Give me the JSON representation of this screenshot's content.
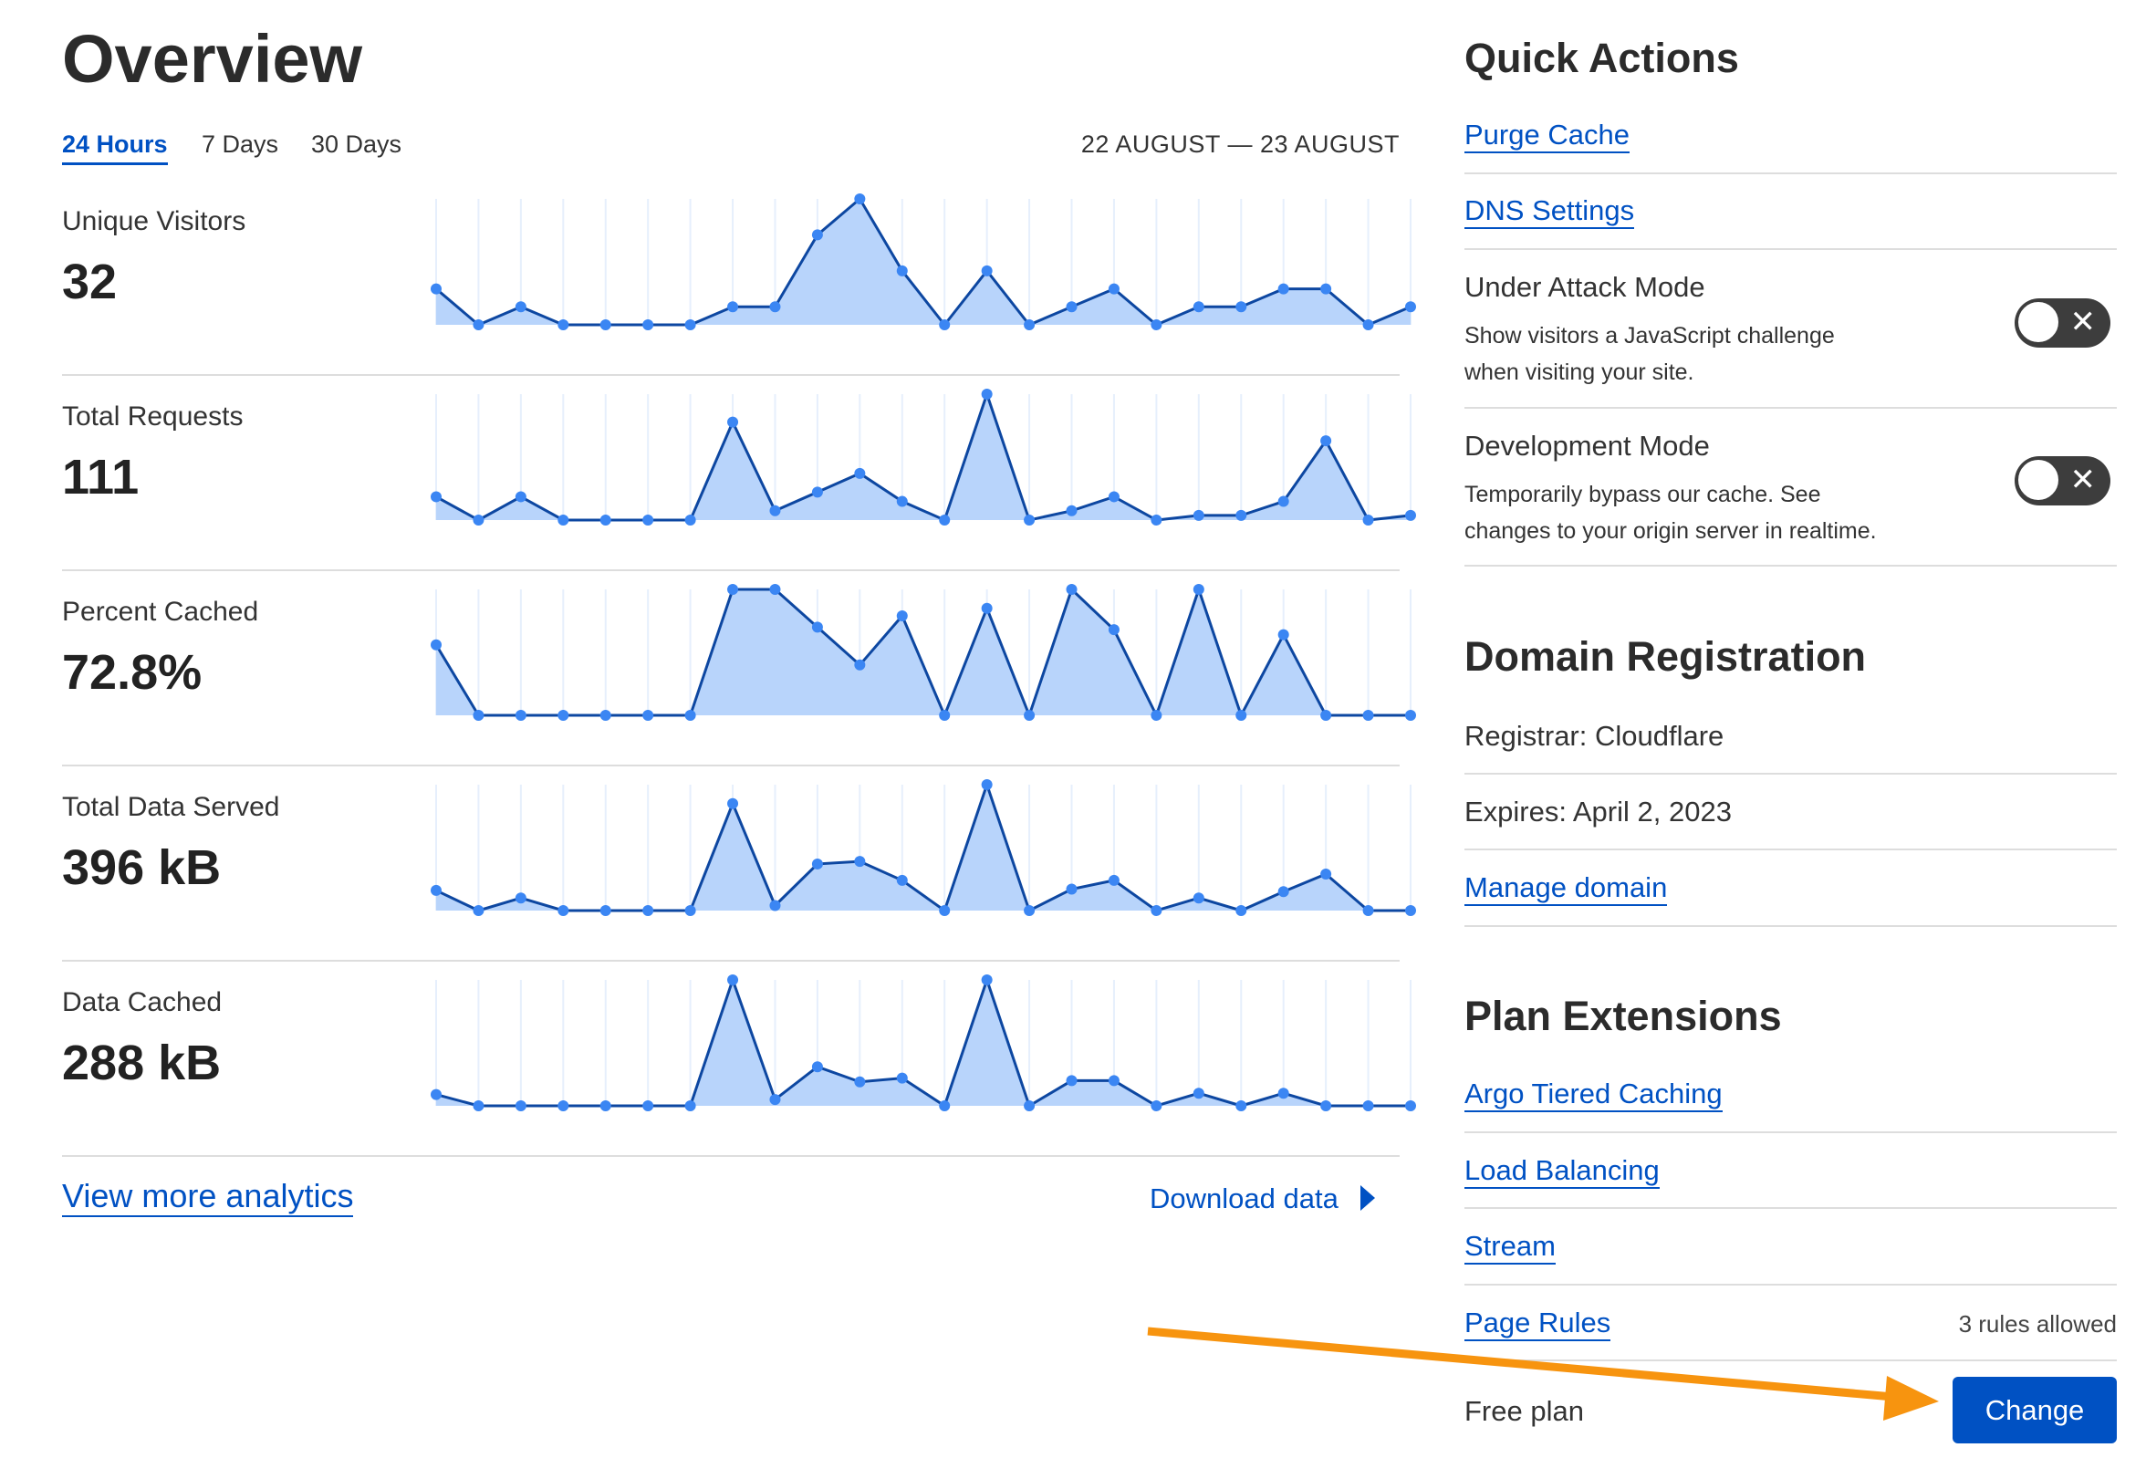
{
  "overview": {
    "title": "Overview",
    "tabs": [
      {
        "label": "24 Hours",
        "active": true
      },
      {
        "label": "7 Days",
        "active": false
      },
      {
        "label": "30 Days",
        "active": false
      }
    ],
    "date_range": "22 AUGUST — 23 AUGUST",
    "metrics": [
      {
        "label": "Unique Visitors",
        "value": "32"
      },
      {
        "label": "Total Requests",
        "value": "111"
      },
      {
        "label": "Percent Cached",
        "value": "72.8%"
      },
      {
        "label": "Total Data Served",
        "value": "396 kB"
      },
      {
        "label": "Data Cached",
        "value": "288 kB"
      }
    ],
    "view_more": "View more analytics",
    "download": "Download data"
  },
  "chart_data": [
    {
      "type": "area",
      "name": "Unique Visitors",
      "values": [
        2,
        0,
        1,
        0,
        0,
        0,
        0,
        1,
        1,
        5,
        7,
        3,
        0,
        3,
        0,
        1,
        2,
        0,
        1,
        1,
        2,
        2,
        0,
        1
      ]
    },
    {
      "type": "area",
      "name": "Total Requests",
      "values": [
        5,
        0,
        5,
        0,
        0,
        0,
        0,
        21,
        2,
        6,
        10,
        4,
        0,
        27,
        0,
        2,
        5,
        0,
        1,
        1,
        4,
        17,
        0,
        1
      ]
    },
    {
      "type": "area",
      "name": "Percent Cached",
      "values": [
        56,
        0,
        0,
        0,
        0,
        0,
        0,
        100,
        100,
        70,
        40,
        79,
        0,
        85,
        0,
        100,
        68,
        0,
        100,
        0,
        64,
        0,
        0,
        0
      ]
    },
    {
      "type": "area",
      "name": "Total Data Served",
      "values": [
        16,
        0,
        10,
        0,
        0,
        0,
        0,
        85,
        4,
        37,
        39,
        24,
        0,
        100,
        0,
        17,
        24,
        0,
        10,
        0,
        15,
        29,
        0,
        0
      ]
    },
    {
      "type": "area",
      "name": "Data Cached",
      "values": [
        9,
        0,
        0,
        0,
        0,
        0,
        0,
        100,
        5,
        31,
        19,
        22,
        0,
        100,
        0,
        20,
        20,
        0,
        10,
        0,
        10,
        0,
        0,
        0
      ]
    }
  ],
  "colors": {
    "accent": "#0051c3",
    "line": "#0d47a1",
    "fill": "#b8d4fb",
    "point": "#3b86f3",
    "arrow": "#f7940f",
    "toggle": "#3d3d3d"
  },
  "quick_actions": {
    "title": "Quick Actions",
    "links": [
      "Purge Cache",
      "DNS Settings"
    ],
    "under_attack": {
      "title": "Under Attack Mode",
      "desc1": "Show visitors a JavaScript challenge",
      "desc2": "when visiting your site.",
      "enabled": false
    },
    "dev_mode": {
      "title": "Development Mode",
      "desc1": "Temporarily bypass our cache. See",
      "desc2": "changes to your origin server in realtime.",
      "enabled": false
    },
    "toggle_off_icon": "close-icon"
  },
  "domain": {
    "title": "Domain Registration",
    "registrar": "Registrar: Cloudflare",
    "expires": "Expires: April 2, 2023",
    "manage": "Manage domain"
  },
  "plan": {
    "title": "Plan Extensions",
    "links": [
      "Argo Tiered Caching",
      "Load Balancing",
      "Stream",
      "Page Rules"
    ],
    "page_rules_note": "3 rules allowed",
    "plan_name": "Free plan",
    "change": "Change"
  }
}
